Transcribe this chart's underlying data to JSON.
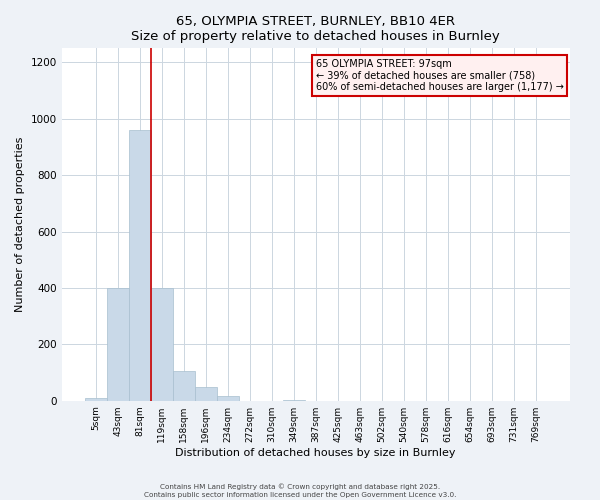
{
  "title": "65, OLYMPIA STREET, BURNLEY, BB10 4ER",
  "subtitle": "Size of property relative to detached houses in Burnley",
  "xlabel": "Distribution of detached houses by size in Burnley",
  "ylabel": "Number of detached properties",
  "bar_labels": [
    "5sqm",
    "43sqm",
    "81sqm",
    "119sqm",
    "158sqm",
    "196sqm",
    "234sqm",
    "272sqm",
    "310sqm",
    "349sqm",
    "387sqm",
    "425sqm",
    "463sqm",
    "502sqm",
    "540sqm",
    "578sqm",
    "616sqm",
    "654sqm",
    "693sqm",
    "731sqm",
    "769sqm"
  ],
  "bar_values": [
    10,
    400,
    960,
    400,
    105,
    50,
    18,
    0,
    0,
    2,
    0,
    0,
    0,
    0,
    0,
    0,
    0,
    0,
    0,
    0,
    0
  ],
  "bar_color": "#c9d9e8",
  "bar_edge_color": "#a8bfcf",
  "vline_color": "#cc0000",
  "vline_x_idx": 2,
  "ylim": [
    0,
    1250
  ],
  "yticks": [
    0,
    200,
    400,
    600,
    800,
    1000,
    1200
  ],
  "annotation_title": "65 OLYMPIA STREET: 97sqm",
  "annotation_line1": "← 39% of detached houses are smaller (758)",
  "annotation_line2": "60% of semi-detached houses are larger (1,177) →",
  "annotation_box_facecolor": "#fff0f0",
  "annotation_box_edge": "#cc0000",
  "footer1": "Contains HM Land Registry data © Crown copyright and database right 2025.",
  "footer2": "Contains public sector information licensed under the Open Government Licence v3.0.",
  "bg_color": "#eef2f7",
  "plot_bg_color": "#ffffff",
  "grid_color": "#ccd6e0"
}
